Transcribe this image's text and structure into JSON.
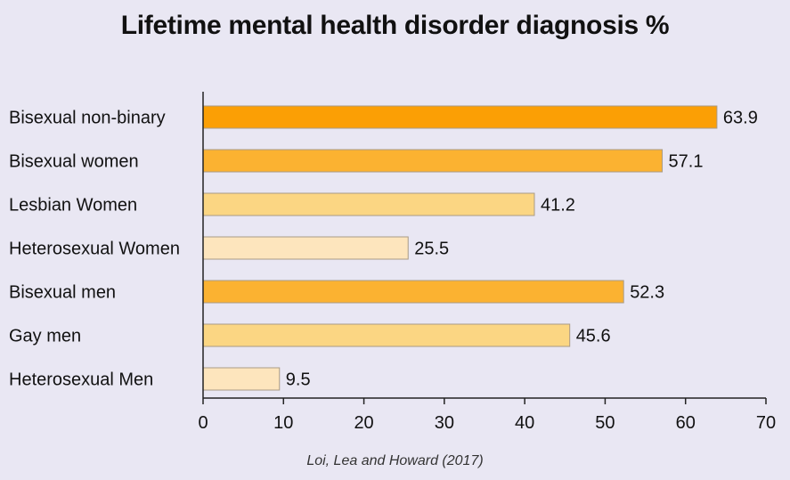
{
  "chart_data": {
    "type": "bar",
    "orientation": "horizontal",
    "title": "Lifetime mental health disorder diagnosis %",
    "source": "Loi, Lea and Howard (2017)",
    "categories": [
      "Bisexual non-binary",
      "Bisexual women",
      "Lesbian Women",
      "Heterosexual Women",
      "Bisexual men",
      "Gay men",
      "Heterosexual Men"
    ],
    "values": [
      63.9,
      57.1,
      41.2,
      25.5,
      52.3,
      45.6,
      9.5
    ],
    "bar_colors": [
      "#fb9f05",
      "#fbb231",
      "#fbd683",
      "#fde5bd",
      "#fbb231",
      "#fbd683",
      "#fde5bd"
    ],
    "xlim": [
      0,
      70
    ],
    "xticks": [
      0,
      10,
      20,
      30,
      40,
      50,
      60,
      70
    ],
    "xlabel": "",
    "ylabel": "",
    "grid": false,
    "data_labels": true
  }
}
